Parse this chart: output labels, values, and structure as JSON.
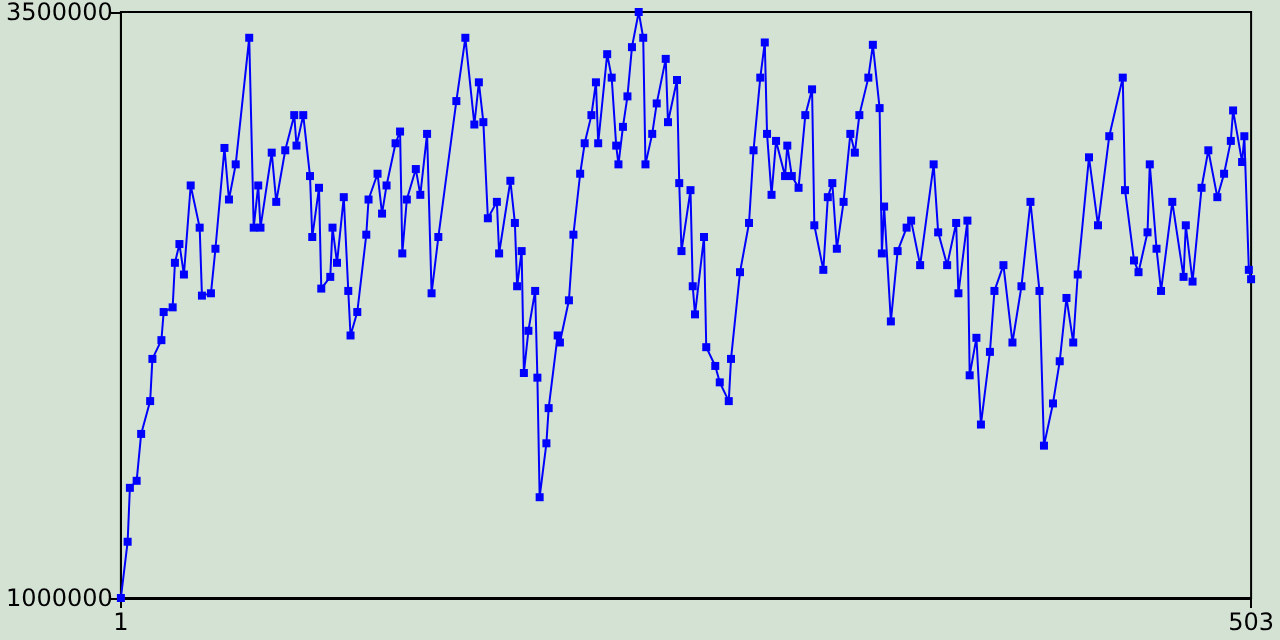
{
  "chart_data": {
    "type": "line",
    "color": "#0000ff",
    "marker": "square",
    "line_style": "solid",
    "xlim": [
      1,
      503
    ],
    "xticks": [
      1,
      503
    ],
    "ylim": [
      1000000,
      3500000
    ],
    "yticks": [
      1000000,
      3500000
    ],
    "x": [
      1,
      4,
      5,
      8,
      10,
      14,
      15,
      19,
      20,
      24,
      25,
      27,
      29,
      32,
      36,
      37,
      41,
      43,
      47,
      49,
      52,
      58,
      60,
      62,
      63,
      68,
      70,
      74,
      78,
      79,
      82,
      85,
      86,
      89,
      90,
      94,
      95,
      97,
      100,
      102,
      103,
      106,
      110,
      111,
      115,
      117,
      119,
      123,
      125,
      126,
      128,
      132,
      134,
      137,
      139,
      142,
      150,
      154,
      158,
      160,
      162,
      164,
      168,
      169,
      174,
      176,
      177,
      179,
      180,
      182,
      185,
      186,
      187,
      190,
      191,
      195,
      196,
      200,
      202,
      205,
      207,
      210,
      212,
      213,
      217,
      219,
      221,
      222,
      224,
      226,
      228,
      231,
      233,
      234,
      237,
      239,
      243,
      244,
      248,
      249,
      250,
      254,
      255,
      256,
      260,
      261,
      265,
      267,
      271,
      272,
      276,
      280,
      282,
      285,
      287,
      288,
      290,
      292,
      296,
      297,
      299,
      302,
      305,
      308,
      309,
      313,
      315,
      317,
      319,
      322,
      325,
      327,
      329,
      333,
      335,
      338,
      339,
      340,
      343,
      346,
      350,
      352,
      356,
      362,
      364,
      368,
      372,
      373,
      377,
      378,
      381,
      383,
      387,
      389,
      393,
      397,
      401,
      405,
      409,
      411,
      415,
      418,
      421,
      424,
      426,
      431,
      435,
      440,
      446,
      447,
      451,
      453,
      457,
      458,
      461,
      463,
      468,
      473,
      474,
      477,
      481,
      484,
      488,
      491,
      494,
      495,
      499,
      500,
      502,
      503
    ],
    "values": [
      1000000,
      1240000,
      1470000,
      1500000,
      1700000,
      1840000,
      2020000,
      2100000,
      2220000,
      2240000,
      2430000,
      2510000,
      2380000,
      2760000,
      2580000,
      2290000,
      2300000,
      2490000,
      2920000,
      2700000,
      2850000,
      3390000,
      2580000,
      2760000,
      2580000,
      2900000,
      2690000,
      2910000,
      3060000,
      2930000,
      3060000,
      2800000,
      2540000,
      2750000,
      2320000,
      2370000,
      2580000,
      2430000,
      2710000,
      2310000,
      2120000,
      2220000,
      2550000,
      2700000,
      2810000,
      2640000,
      2760000,
      2940000,
      2990000,
      2470000,
      2700000,
      2830000,
      2720000,
      2980000,
      2300000,
      2540000,
      3120000,
      3390000,
      3020000,
      3200000,
      3030000,
      2620000,
      2690000,
      2470000,
      2780000,
      2600000,
      2330000,
      2480000,
      1960000,
      2140000,
      2310000,
      1940000,
      1430000,
      1660000,
      1810000,
      2120000,
      2090000,
      2270000,
      2550000,
      2810000,
      2940000,
      3060000,
      3200000,
      2940000,
      3320000,
      3220000,
      2930000,
      2850000,
      3010000,
      3140000,
      3350000,
      3500000,
      3390000,
      2850000,
      2980000,
      3110000,
      3300000,
      3030000,
      3210000,
      2770000,
      2480000,
      2740000,
      2330000,
      2210000,
      2540000,
      2070000,
      1990000,
      1920000,
      1840000,
      2020000,
      2390000,
      2600000,
      2910000,
      3220000,
      3370000,
      2980000,
      2720000,
      2950000,
      2800000,
      2930000,
      2800000,
      2750000,
      3060000,
      3170000,
      2590000,
      2400000,
      2710000,
      2770000,
      2490000,
      2690000,
      2980000,
      2900000,
      3060000,
      3220000,
      3360000,
      3090000,
      2470000,
      2670000,
      2180000,
      2480000,
      2580000,
      2610000,
      2420000,
      2850000,
      2560000,
      2420000,
      2600000,
      2300000,
      2610000,
      1950000,
      2110000,
      1740000,
      2050000,
      2310000,
      2420000,
      2090000,
      2330000,
      2690000,
      2310000,
      1650000,
      1830000,
      2010000,
      2280000,
      2090000,
      2380000,
      2880000,
      2590000,
      2970000,
      3220000,
      2740000,
      2440000,
      2390000,
      2560000,
      2850000,
      2490000,
      2310000,
      2690000,
      2370000,
      2590000,
      2350000,
      2750000,
      2910000,
      2710000,
      2810000,
      2950000,
      3080000,
      2860000,
      2970000,
      2400000,
      2360000
    ]
  }
}
